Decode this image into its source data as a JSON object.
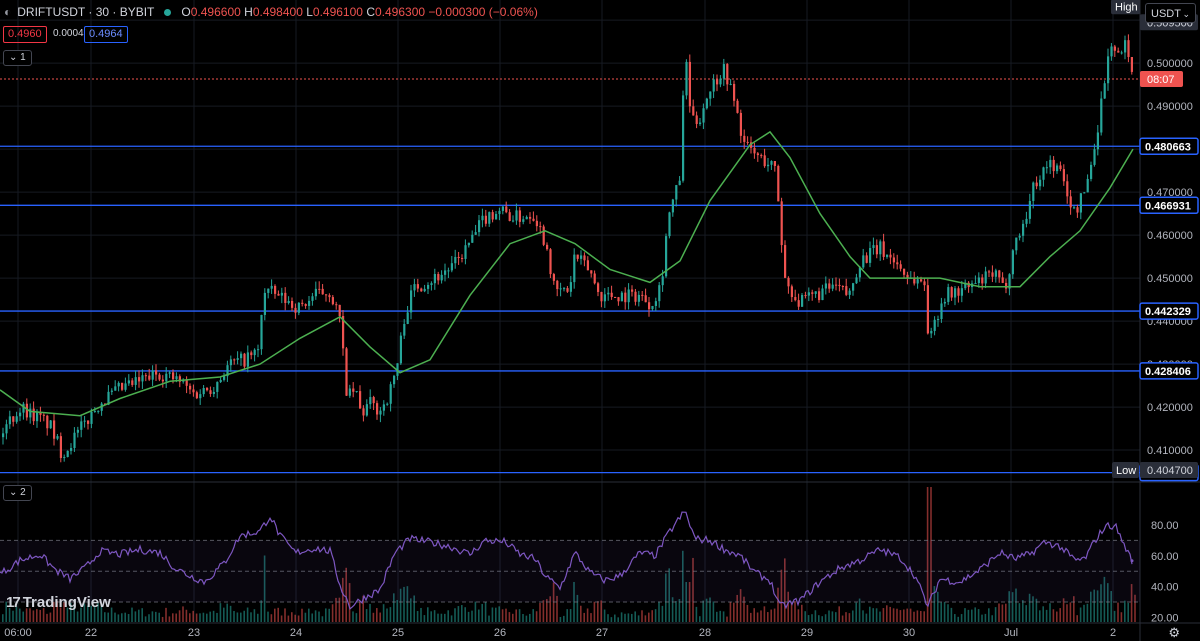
{
  "header": {
    "symbol": "DRIFTUSDT · 30 · BYBIT",
    "open_label": "O",
    "open": "0.496600",
    "high_label": "H",
    "high": "0.498400",
    "low_label": "L",
    "low": "0.496100",
    "close_label": "C",
    "close": "0.496300",
    "change": "−0.000300 (−0.06%)",
    "bid": "0.4960",
    "spread": "0.0004",
    "ask": "0.4964",
    "pane1_tag": "1",
    "pane2_tag": "2",
    "currency": "USDT",
    "logo": "TradingView"
  },
  "colors": {
    "up": "#26a69a",
    "down": "#ef5350",
    "sma": "#4caf50",
    "rsi": "#7e57c2",
    "hline": "#2962ff",
    "background": "#000000"
  },
  "chart_data": [
    {
      "type": "candlestick",
      "title": "DRIFTUSDT · 30 · BYBIT",
      "ylim": [
        0.4035,
        0.5105
      ],
      "y_ticks": [
        0.41,
        0.42,
        0.43,
        0.44,
        0.45,
        0.46,
        0.47,
        0.48,
        0.49,
        0.5,
        0.51
      ],
      "y_tick_labels": [
        "0.410000",
        "0.420000",
        "0.430000",
        "0.440000",
        "0.450000",
        "0.460000",
        "0.470000",
        "0.480000",
        "0.490000",
        "0.500000",
        "0.509500"
      ],
      "x_tick_labels": [
        "06:00",
        "22",
        "23",
        "24",
        "25",
        "26",
        "27",
        "28",
        "29",
        "30",
        "Jul",
        "2"
      ],
      "horizontal_levels": [
        {
          "value": 0.480663,
          "label": "0.480663"
        },
        {
          "value": 0.466931,
          "label": "0.466931"
        },
        {
          "value": 0.442329,
          "label": "0.442329"
        },
        {
          "value": 0.428406,
          "label": "0.428406"
        },
        {
          "value": 0.404757,
          "label": "0.404757"
        }
      ],
      "last_price": {
        "value": 0.4963,
        "label": "08:07"
      },
      "high": {
        "label": "High",
        "value": "0.509500"
      },
      "low": {
        "label": "Low",
        "value": "0.404700"
      },
      "price_path": [
        [
          0,
          0.413
        ],
        [
          10,
          0.417
        ],
        [
          22,
          0.42
        ],
        [
          35,
          0.418
        ],
        [
          50,
          0.416
        ],
        [
          63,
          0.409
        ],
        [
          72,
          0.412
        ],
        [
          85,
          0.416
        ],
        [
          100,
          0.421
        ],
        [
          120,
          0.424
        ],
        [
          140,
          0.426
        ],
        [
          160,
          0.428
        ],
        [
          180,
          0.426
        ],
        [
          195,
          0.423
        ],
        [
          205,
          0.424
        ],
        [
          215,
          0.425
        ],
        [
          230,
          0.43
        ],
        [
          245,
          0.431
        ],
        [
          260,
          0.433
        ],
        [
          263,
          0.446
        ],
        [
          268,
          0.447
        ],
        [
          285,
          0.445
        ],
        [
          300,
          0.443
        ],
        [
          315,
          0.446
        ],
        [
          330,
          0.447
        ],
        [
          340,
          0.441
        ],
        [
          348,
          0.422
        ],
        [
          356,
          0.424
        ],
        [
          362,
          0.418
        ],
        [
          370,
          0.421
        ],
        [
          380,
          0.419
        ],
        [
          390,
          0.423
        ],
        [
          398,
          0.43
        ],
        [
          405,
          0.441
        ],
        [
          415,
          0.448
        ],
        [
          435,
          0.45
        ],
        [
          455,
          0.453
        ],
        [
          470,
          0.458
        ],
        [
          485,
          0.464
        ],
        [
          500,
          0.466
        ],
        [
          515,
          0.464
        ],
        [
          535,
          0.465
        ],
        [
          548,
          0.457
        ],
        [
          555,
          0.447
        ],
        [
          570,
          0.447
        ],
        [
          575,
          0.455
        ],
        [
          590,
          0.452
        ],
        [
          600,
          0.446
        ],
        [
          620,
          0.446
        ],
        [
          640,
          0.446
        ],
        [
          652,
          0.444
        ],
        [
          662,
          0.449
        ],
        [
          668,
          0.463
        ],
        [
          675,
          0.469
        ],
        [
          680,
          0.472
        ],
        [
          686,
          0.503
        ],
        [
          692,
          0.486
        ],
        [
          700,
          0.487
        ],
        [
          710,
          0.494
        ],
        [
          725,
          0.499
        ],
        [
          735,
          0.491
        ],
        [
          745,
          0.481
        ],
        [
          760,
          0.478
        ],
        [
          775,
          0.476
        ],
        [
          780,
          0.466
        ],
        [
          785,
          0.45
        ],
        [
          800,
          0.444
        ],
        [
          815,
          0.446
        ],
        [
          835,
          0.448
        ],
        [
          850,
          0.446
        ],
        [
          860,
          0.454
        ],
        [
          880,
          0.457
        ],
        [
          895,
          0.454
        ],
        [
          910,
          0.45
        ],
        [
          925,
          0.449
        ],
        [
          930,
          0.434
        ],
        [
          935,
          0.44
        ],
        [
          945,
          0.446
        ],
        [
          960,
          0.447
        ],
        [
          980,
          0.449
        ],
        [
          995,
          0.451
        ],
        [
          1005,
          0.447
        ],
        [
          1015,
          0.458
        ],
        [
          1025,
          0.463
        ],
        [
          1035,
          0.472
        ],
        [
          1050,
          0.477
        ],
        [
          1060,
          0.475
        ],
        [
          1075,
          0.465
        ],
        [
          1085,
          0.47
        ],
        [
          1095,
          0.48
        ],
        [
          1100,
          0.488
        ],
        [
          1105,
          0.496
        ],
        [
          1112,
          0.505
        ],
        [
          1120,
          0.501
        ],
        [
          1128,
          0.505
        ],
        [
          1133,
          0.4963
        ]
      ],
      "series": [
        {
          "type": "line",
          "color": "#4caf50",
          "points": [
            [
              0,
              0.424
            ],
            [
              30,
              0.419
            ],
            [
              80,
              0.418
            ],
            [
              120,
              0.422
            ],
            [
              170,
              0.426
            ],
            [
              220,
              0.427
            ],
            [
              260,
              0.43
            ],
            [
              300,
              0.436
            ],
            [
              340,
              0.441
            ],
            [
              370,
              0.434
            ],
            [
              400,
              0.428
            ],
            [
              430,
              0.431
            ],
            [
              470,
              0.446
            ],
            [
              510,
              0.458
            ],
            [
              545,
              0.461
            ],
            [
              575,
              0.458
            ],
            [
              610,
              0.452
            ],
            [
              650,
              0.449
            ],
            [
              680,
              0.454
            ],
            [
              710,
              0.468
            ],
            [
              750,
              0.481
            ],
            [
              770,
              0.484
            ],
            [
              790,
              0.478
            ],
            [
              820,
              0.465
            ],
            [
              850,
              0.455
            ],
            [
              870,
              0.45
            ],
            [
              900,
              0.45
            ],
            [
              940,
              0.45
            ],
            [
              980,
              0.448
            ],
            [
              1020,
              0.448
            ],
            [
              1050,
              0.455
            ],
            [
              1080,
              0.461
            ],
            [
              1110,
              0.471
            ],
            [
              1133,
              0.48
            ]
          ]
        }
      ]
    },
    {
      "type": "line",
      "ylim": [
        17,
        93
      ],
      "y_ticks": [
        20,
        40,
        60,
        80
      ],
      "y_tick_labels": [
        "20.00",
        "40.00",
        "60.00",
        "80.00"
      ],
      "guide_levels": [
        70,
        50,
        30
      ],
      "last_value": 56.77,
      "series": [
        {
          "type": "line",
          "color": "#7e57c2",
          "points": [
            [
              0,
              48
            ],
            [
              20,
              57
            ],
            [
              40,
              61
            ],
            [
              55,
              51
            ],
            [
              70,
              45
            ],
            [
              85,
              52
            ],
            [
              100,
              63
            ],
            [
              120,
              61
            ],
            [
              140,
              64
            ],
            [
              160,
              62
            ],
            [
              175,
              52
            ],
            [
              190,
              47
            ],
            [
              205,
              43
            ],
            [
              225,
              56
            ],
            [
              240,
              73
            ],
            [
              260,
              76
            ],
            [
              270,
              86
            ],
            [
              280,
              73
            ],
            [
              295,
              62
            ],
            [
              315,
              65
            ],
            [
              330,
              63
            ],
            [
              340,
              41
            ],
            [
              350,
              27
            ],
            [
              365,
              33
            ],
            [
              380,
              38
            ],
            [
              395,
              62
            ],
            [
              410,
              71
            ],
            [
              430,
              69
            ],
            [
              450,
              66
            ],
            [
              470,
              61
            ],
            [
              485,
              70
            ],
            [
              505,
              69
            ],
            [
              520,
              61
            ],
            [
              535,
              58
            ],
            [
              545,
              47
            ],
            [
              560,
              39
            ],
            [
              575,
              62
            ],
            [
              590,
              49
            ],
            [
              605,
              44
            ],
            [
              620,
              47
            ],
            [
              640,
              62
            ],
            [
              655,
              60
            ],
            [
              670,
              76
            ],
            [
              685,
              89
            ],
            [
              695,
              71
            ],
            [
              710,
              70
            ],
            [
              725,
              64
            ],
            [
              740,
              60
            ],
            [
              755,
              49
            ],
            [
              770,
              44
            ],
            [
              780,
              27
            ],
            [
              800,
              31
            ],
            [
              820,
              43
            ],
            [
              840,
              52
            ],
            [
              860,
              57
            ],
            [
              880,
              64
            ],
            [
              900,
              59
            ],
            [
              915,
              47
            ],
            [
              928,
              27
            ],
            [
              940,
              45
            ],
            [
              960,
              43
            ],
            [
              980,
              51
            ],
            [
              1000,
              62
            ],
            [
              1015,
              58
            ],
            [
              1030,
              61
            ],
            [
              1045,
              69
            ],
            [
              1060,
              66
            ],
            [
              1075,
              57
            ],
            [
              1085,
              58
            ],
            [
              1095,
              70
            ],
            [
              1105,
              79
            ],
            [
              1115,
              80
            ],
            [
              1125,
              66
            ],
            [
              1132,
              57
            ]
          ]
        }
      ]
    }
  ]
}
